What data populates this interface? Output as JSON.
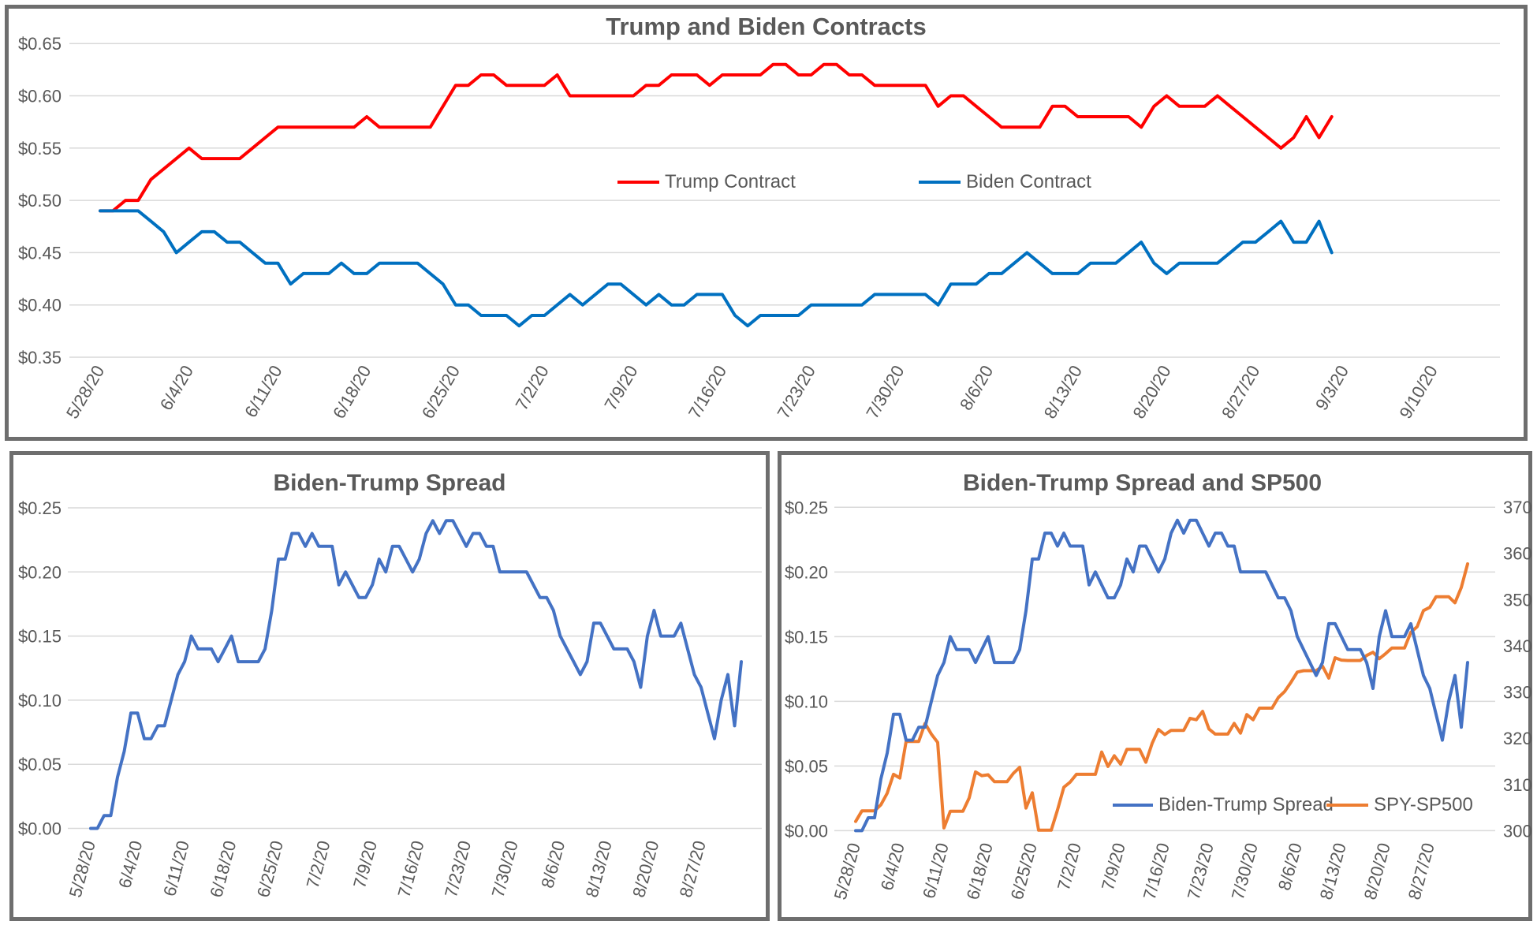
{
  "chart_data": [
    {
      "id": "contracts",
      "type": "line",
      "title": "Trump and Biden Contracts",
      "ylim": [
        0.35,
        0.65
      ],
      "y_tick_labels": [
        "$0.35",
        "$0.40",
        "$0.45",
        "$0.50",
        "$0.55",
        "$0.60",
        "$0.65"
      ],
      "x_tick_labels": [
        "5/28/20",
        "6/4/20",
        "6/11/20",
        "6/18/20",
        "6/25/20",
        "7/2/20",
        "7/9/20",
        "7/16/20",
        "7/23/20",
        "7/30/20",
        "8/6/20",
        "8/13/20",
        "8/20/20",
        "8/27/20",
        "9/3/20",
        "9/10/20"
      ],
      "grid": true,
      "legend_position": "inside-middle",
      "series": [
        {
          "name": "Trump Contract",
          "color": "#FF0000",
          "values": [
            0.49,
            0.49,
            0.5,
            0.5,
            0.52,
            0.53,
            0.54,
            0.55,
            0.54,
            0.54,
            0.54,
            0.54,
            0.55,
            0.56,
            0.57,
            0.57,
            0.57,
            0.57,
            0.57,
            0.57,
            0.57,
            0.58,
            0.57,
            0.57,
            0.57,
            0.57,
            0.57,
            0.59,
            0.61,
            0.61,
            0.62,
            0.62,
            0.61,
            0.61,
            0.61,
            0.61,
            0.62,
            0.6,
            0.6,
            0.6,
            0.6,
            0.6,
            0.6,
            0.61,
            0.61,
            0.62,
            0.62,
            0.62,
            0.61,
            0.62,
            0.62,
            0.62,
            0.62,
            0.63,
            0.63,
            0.62,
            0.62,
            0.63,
            0.63,
            0.62,
            0.62,
            0.61,
            0.61,
            0.61,
            0.61,
            0.61,
            0.59,
            0.6,
            0.6,
            0.59,
            0.58,
            0.57,
            0.57,
            0.57,
            0.57,
            0.59,
            0.59,
            0.58,
            0.58,
            0.58,
            0.58,
            0.58,
            0.57,
            0.59,
            0.6,
            0.59,
            0.59,
            0.59,
            0.6,
            0.59,
            0.58,
            0.57,
            0.56,
            0.55,
            0.56,
            0.58,
            0.56,
            0.58
          ]
        },
        {
          "name": "Biden Contract",
          "color": "#0070C0",
          "values": [
            0.49,
            0.49,
            0.49,
            0.49,
            0.48,
            0.47,
            0.45,
            0.46,
            0.47,
            0.47,
            0.46,
            0.46,
            0.45,
            0.44,
            0.44,
            0.42,
            0.43,
            0.43,
            0.43,
            0.44,
            0.43,
            0.43,
            0.44,
            0.44,
            0.44,
            0.44,
            0.43,
            0.42,
            0.4,
            0.4,
            0.39,
            0.39,
            0.39,
            0.38,
            0.39,
            0.39,
            0.4,
            0.41,
            0.4,
            0.41,
            0.42,
            0.42,
            0.41,
            0.4,
            0.41,
            0.4,
            0.4,
            0.41,
            0.41,
            0.41,
            0.39,
            0.38,
            0.39,
            0.39,
            0.39,
            0.39,
            0.4,
            0.4,
            0.4,
            0.4,
            0.4,
            0.41,
            0.41,
            0.41,
            0.41,
            0.41,
            0.4,
            0.42,
            0.42,
            0.42,
            0.43,
            0.43,
            0.44,
            0.45,
            0.44,
            0.43,
            0.43,
            0.43,
            0.44,
            0.44,
            0.44,
            0.45,
            0.46,
            0.44,
            0.43,
            0.44,
            0.44,
            0.44,
            0.44,
            0.45,
            0.46,
            0.46,
            0.47,
            0.48,
            0.46,
            0.46,
            0.48,
            0.45
          ]
        }
      ],
      "x_dates": [
        "5/28/20",
        "5/29/20",
        "5/30/20",
        "5/31/20",
        "6/1/20",
        "6/2/20",
        "6/3/20",
        "6/4/20",
        "6/5/20",
        "6/6/20",
        "6/7/20",
        "6/8/20",
        "6/9/20",
        "6/10/20",
        "6/11/20",
        "6/12/20",
        "6/13/20",
        "6/14/20",
        "6/15/20",
        "6/16/20",
        "6/17/20",
        "6/18/20",
        "6/19/20",
        "6/20/20",
        "6/21/20",
        "6/22/20",
        "6/23/20",
        "6/24/20",
        "6/25/20",
        "6/26/20",
        "6/27/20",
        "6/28/20",
        "6/29/20",
        "6/30/20",
        "7/1/20",
        "7/2/20",
        "7/3/20",
        "7/4/20",
        "7/5/20",
        "7/6/20",
        "7/7/20",
        "7/8/20",
        "7/9/20",
        "7/10/20",
        "7/11/20",
        "7/12/20",
        "7/13/20",
        "7/14/20",
        "7/15/20",
        "7/16/20",
        "7/17/20",
        "7/18/20",
        "7/19/20",
        "7/20/20",
        "7/21/20",
        "7/22/20",
        "7/23/20",
        "7/24/20",
        "7/25/20",
        "7/26/20",
        "7/27/20",
        "7/28/20",
        "7/29/20",
        "7/30/20",
        "7/31/20",
        "8/1/20",
        "8/2/20",
        "8/3/20",
        "8/4/20",
        "8/5/20",
        "8/6/20",
        "8/7/20",
        "8/8/20",
        "8/9/20",
        "8/10/20",
        "8/11/20",
        "8/12/20",
        "8/13/20",
        "8/14/20",
        "8/15/20",
        "8/16/20",
        "8/17/20",
        "8/18/20",
        "8/19/20",
        "8/20/20",
        "8/21/20",
        "8/22/20",
        "8/23/20",
        "8/24/20",
        "8/25/20",
        "8/26/20",
        "8/27/20",
        "8/28/20",
        "8/29/20",
        "8/30/20",
        "8/31/20",
        "9/1/20",
        "9/2/20"
      ]
    },
    {
      "id": "spread",
      "type": "line",
      "title": "Biden-Trump Spread",
      "ylim": [
        0.0,
        0.25
      ],
      "y_tick_labels": [
        "$0.00",
        "$0.05",
        "$0.10",
        "$0.15",
        "$0.20",
        "$0.25"
      ],
      "x_tick_labels": [
        "5/28/20",
        "6/4/20",
        "6/11/20",
        "6/18/20",
        "6/25/20",
        "7/2/20",
        "7/9/20",
        "7/16/20",
        "7/23/20",
        "7/30/20",
        "8/6/20",
        "8/13/20",
        "8/20/20",
        "8/27/20"
      ],
      "grid": true,
      "series": [
        {
          "name": "Biden-Trump Spread",
          "color": "#4472C4",
          "values": [
            0.0,
            0.0,
            0.01,
            0.01,
            0.04,
            0.06,
            0.09,
            0.09,
            0.07,
            0.07,
            0.08,
            0.08,
            0.1,
            0.12,
            0.13,
            0.15,
            0.14,
            0.14,
            0.14,
            0.13,
            0.14,
            0.15,
            0.13,
            0.13,
            0.13,
            0.13,
            0.14,
            0.17,
            0.21,
            0.21,
            0.23,
            0.23,
            0.22,
            0.23,
            0.22,
            0.22,
            0.22,
            0.19,
            0.2,
            0.19,
            0.18,
            0.18,
            0.19,
            0.21,
            0.2,
            0.22,
            0.22,
            0.21,
            0.2,
            0.21,
            0.23,
            0.24,
            0.23,
            0.24,
            0.24,
            0.23,
            0.22,
            0.23,
            0.23,
            0.22,
            0.22,
            0.2,
            0.2,
            0.2,
            0.2,
            0.2,
            0.19,
            0.18,
            0.18,
            0.17,
            0.15,
            0.14,
            0.13,
            0.12,
            0.13,
            0.16,
            0.16,
            0.15,
            0.14,
            0.14,
            0.14,
            0.13,
            0.11,
            0.15,
            0.17,
            0.15,
            0.15,
            0.15,
            0.16,
            0.14,
            0.12,
            0.11,
            0.09,
            0.07,
            0.1,
            0.12,
            0.08,
            0.13
          ]
        }
      ]
    },
    {
      "id": "spread_sp500",
      "type": "line",
      "title": "Biden-Trump Spread and SP500",
      "ylim_left": [
        0.0,
        0.25
      ],
      "ylim_right": [
        300,
        370
      ],
      "y_tick_labels_left": [
        "$0.00",
        "$0.05",
        "$0.10",
        "$0.15",
        "$0.20",
        "$0.25"
      ],
      "y_tick_labels_right": [
        "300",
        "310",
        "320",
        "330",
        "340",
        "350",
        "360",
        "370"
      ],
      "x_tick_labels": [
        "5/28/20",
        "6/4/20",
        "6/11/20",
        "6/18/20",
        "6/25/20",
        "7/2/20",
        "7/9/20",
        "7/16/20",
        "7/23/20",
        "7/30/20",
        "8/6/20",
        "8/13/20",
        "8/20/20",
        "8/27/20"
      ],
      "grid": true,
      "legend_position": "inside-bottom",
      "series": [
        {
          "name": "Biden-Trump Spread",
          "color": "#4472C4",
          "axis": "left",
          "values": [
            0.0,
            0.0,
            0.01,
            0.01,
            0.04,
            0.06,
            0.09,
            0.09,
            0.07,
            0.07,
            0.08,
            0.08,
            0.1,
            0.12,
            0.13,
            0.15,
            0.14,
            0.14,
            0.14,
            0.13,
            0.14,
            0.15,
            0.13,
            0.13,
            0.13,
            0.13,
            0.14,
            0.17,
            0.21,
            0.21,
            0.23,
            0.23,
            0.22,
            0.23,
            0.22,
            0.22,
            0.22,
            0.19,
            0.2,
            0.19,
            0.18,
            0.18,
            0.19,
            0.21,
            0.2,
            0.22,
            0.22,
            0.21,
            0.2,
            0.21,
            0.23,
            0.24,
            0.23,
            0.24,
            0.24,
            0.23,
            0.22,
            0.23,
            0.23,
            0.22,
            0.22,
            0.2,
            0.2,
            0.2,
            0.2,
            0.2,
            0.19,
            0.18,
            0.18,
            0.17,
            0.15,
            0.14,
            0.13,
            0.12,
            0.13,
            0.16,
            0.16,
            0.15,
            0.14,
            0.14,
            0.14,
            0.13,
            0.11,
            0.15,
            0.17,
            0.15,
            0.15,
            0.15,
            0.16,
            0.14,
            0.12,
            0.11,
            0.09,
            0.07,
            0.1,
            0.12,
            0.08,
            0.13
          ]
        },
        {
          "name": "SPY-SP500",
          "color": "#ED7D31",
          "axis": "right",
          "values": [
            302.0,
            304.3,
            304.3,
            304.3,
            305.6,
            308.1,
            312.2,
            311.4,
            319.3,
            319.3,
            319.3,
            323.2,
            320.9,
            319.1,
            300.6,
            304.2,
            304.2,
            304.2,
            307.1,
            312.7,
            311.9,
            312.1,
            310.6,
            310.6,
            310.6,
            312.4,
            313.7,
            304.9,
            308.2,
            300.1,
            300.1,
            300.1,
            304.5,
            309.4,
            310.5,
            312.2,
            312.2,
            312.2,
            312.2,
            317.0,
            313.9,
            316.2,
            314.4,
            317.6,
            317.6,
            317.6,
            314.8,
            318.9,
            321.9,
            320.8,
            321.7,
            321.7,
            321.7,
            324.3,
            324.0,
            325.8,
            322.0,
            320.9,
            320.9,
            320.9,
            323.2,
            321.1,
            325.1,
            324.0,
            326.5,
            326.5,
            326.5,
            328.8,
            330.1,
            332.1,
            334.3,
            334.6,
            334.6,
            334.6,
            335.6,
            333.0,
            337.4,
            336.9,
            336.8,
            336.8,
            336.8,
            337.9,
            338.6,
            337.2,
            338.3,
            339.5,
            339.5,
            339.5,
            342.9,
            344.1,
            347.6,
            348.3,
            350.6,
            350.6,
            350.6,
            349.3,
            352.6,
            357.7
          ]
        }
      ]
    }
  ],
  "colors": {
    "trump_red": "#FF0000",
    "biden_blue": "#0070C0",
    "spread_blue": "#4472C4",
    "sp500_orange": "#ED7D31",
    "grid": "#D9D9D9",
    "axis_text": "#595959",
    "panel_border": "#6e6e6e"
  }
}
